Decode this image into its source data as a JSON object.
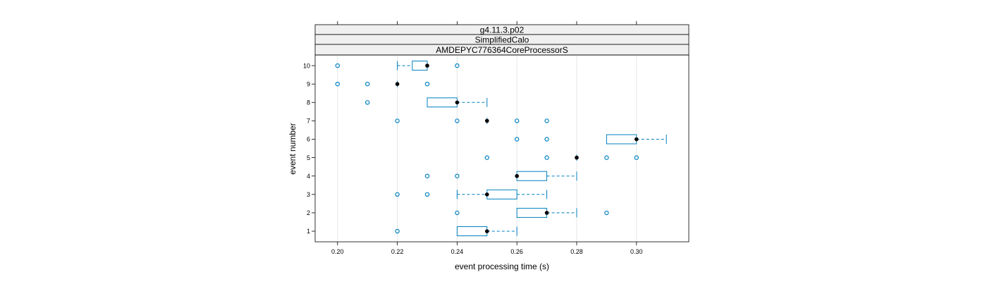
{
  "chart_data": {
    "type": "boxplot",
    "strips": [
      "g4.11.3.p02",
      "SimplifiedCalo",
      "AMDEPYC776364CoreProcessorS"
    ],
    "xlabel": "event processing time (s)",
    "ylabel": "event number",
    "xlim": [
      0.1925,
      0.3175
    ],
    "xticks": [
      "0.20",
      "0.22",
      "0.24",
      "0.26",
      "0.28",
      "0.30"
    ],
    "categories": [
      "1",
      "2",
      "3",
      "4",
      "5",
      "6",
      "7",
      "8",
      "9",
      "10"
    ],
    "boxes": [
      {
        "event": "1",
        "whisker_low": 0.24,
        "q1": 0.24,
        "median": 0.25,
        "q3": 0.25,
        "whisker_high": 0.26,
        "outliers": [
          0.22
        ]
      },
      {
        "event": "2",
        "whisker_low": 0.26,
        "q1": 0.26,
        "median": 0.27,
        "q3": 0.27,
        "whisker_high": 0.28,
        "outliers": [
          0.24,
          0.29
        ]
      },
      {
        "event": "3",
        "whisker_low": 0.24,
        "q1": 0.25,
        "median": 0.25,
        "q3": 0.26,
        "whisker_high": 0.27,
        "outliers": [
          0.22,
          0.23
        ]
      },
      {
        "event": "4",
        "whisker_low": 0.26,
        "q1": 0.26,
        "median": 0.26,
        "q3": 0.27,
        "whisker_high": 0.28,
        "outliers": [
          0.23,
          0.24
        ]
      },
      {
        "event": "5",
        "whisker_low": 0.28,
        "q1": 0.28,
        "median": 0.28,
        "q3": 0.28,
        "whisker_high": 0.28,
        "outliers": [
          0.25,
          0.27,
          0.29,
          0.3
        ]
      },
      {
        "event": "6",
        "whisker_low": 0.29,
        "q1": 0.29,
        "median": 0.3,
        "q3": 0.3,
        "whisker_high": 0.31,
        "outliers": [
          0.26,
          0.27
        ]
      },
      {
        "event": "7",
        "whisker_low": 0.25,
        "q1": 0.25,
        "median": 0.25,
        "q3": 0.25,
        "whisker_high": 0.25,
        "outliers": [
          0.22,
          0.24,
          0.26,
          0.27
        ]
      },
      {
        "event": "8",
        "whisker_low": 0.23,
        "q1": 0.23,
        "median": 0.24,
        "q3": 0.24,
        "whisker_high": 0.25,
        "outliers": [
          0.21
        ]
      },
      {
        "event": "9",
        "whisker_low": 0.22,
        "q1": 0.22,
        "median": 0.22,
        "q3": 0.22,
        "whisker_high": 0.22,
        "outliers": [
          0.2,
          0.21,
          0.23
        ]
      },
      {
        "event": "10",
        "whisker_low": 0.22,
        "q1": 0.225,
        "median": 0.23,
        "q3": 0.23,
        "whisker_high": 0.23,
        "outliers": [
          0.2,
          0.24
        ]
      }
    ],
    "grid": "vertical",
    "colors": {
      "box": "#0080c0",
      "whisker": "#0080c0",
      "median": "#000000",
      "outlier": "#0080c0",
      "grid": "#e6e6e6",
      "strip_bg": "#f0f0f0"
    }
  }
}
